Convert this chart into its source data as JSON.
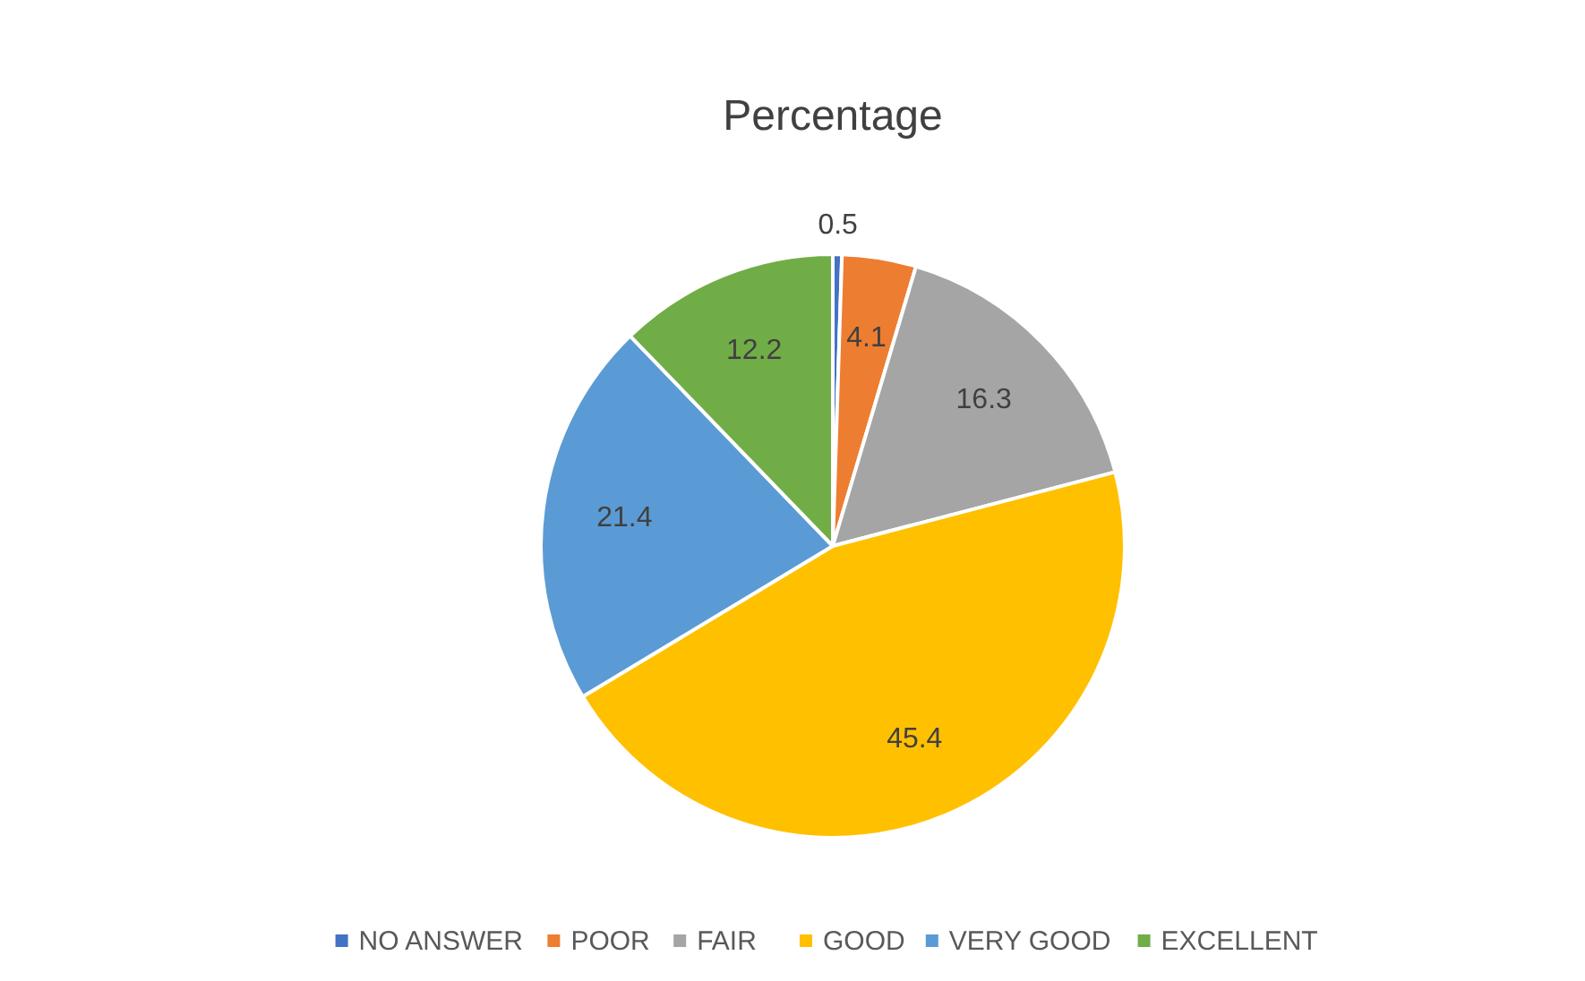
{
  "chart_data": {
    "type": "pie",
    "title": "Percentage",
    "categories": [
      "NO ANSWER",
      "POOR",
      "FAIR",
      "GOOD",
      "VERY GOOD",
      "EXCELLENT"
    ],
    "values": [
      0.5,
      4.1,
      16.3,
      45.4,
      21.4,
      12.2
    ],
    "colors": [
      "#4472c4",
      "#ed7d31",
      "#a5a5a5",
      "#ffc000",
      "#5b9bd5",
      "#70ad47"
    ],
    "data_labels": true,
    "legend": "bottom"
  }
}
